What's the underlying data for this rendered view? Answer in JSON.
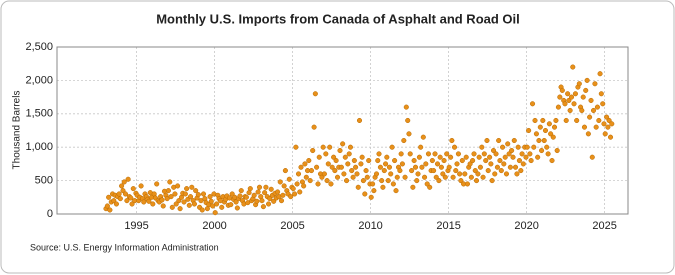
{
  "chart_data": {
    "type": "scatter",
    "title": "Monthly U.S. Imports from Canada of Asphalt and Road Oil",
    "y_label": "Thousand Barrels",
    "source": "Source: U.S. Energy Information Administration",
    "color": "#e8901a",
    "xlim": [
      1989.9,
      2026.5
    ],
    "xticks": [
      1995,
      2000,
      2005,
      2010,
      2015,
      2020,
      2025
    ],
    "ylim": [
      0,
      2500
    ],
    "yticks": [
      0,
      500,
      {
        "value": 1000,
        "label": "1,000"
      },
      {
        "value": 1500,
        "label": "1,500"
      },
      {
        "value": 2000,
        "label": "2,000"
      },
      {
        "value": 2500,
        "label": "2,500"
      }
    ],
    "grid": true,
    "x": [
      1993.04,
      1993.13,
      1993.21,
      1993.29,
      1993.38,
      1993.46,
      1993.54,
      1993.63,
      1993.71,
      1993.79,
      1993.88,
      1993.96,
      1994.04,
      1994.13,
      1994.21,
      1994.29,
      1994.38,
      1994.46,
      1994.54,
      1994.63,
      1994.71,
      1994.79,
      1994.88,
      1994.96,
      1995.04,
      1995.13,
      1995.21,
      1995.29,
      1995.38,
      1995.46,
      1995.54,
      1995.63,
      1995.71,
      1995.79,
      1995.88,
      1995.96,
      1996.04,
      1996.13,
      1996.21,
      1996.29,
      1996.38,
      1996.46,
      1996.54,
      1996.63,
      1996.71,
      1996.79,
      1996.88,
      1996.96,
      1997.04,
      1997.13,
      1997.21,
      1997.29,
      1997.38,
      1997.46,
      1997.54,
      1997.63,
      1997.71,
      1997.79,
      1997.88,
      1997.96,
      1998.04,
      1998.13,
      1998.21,
      1998.29,
      1998.38,
      1998.46,
      1998.54,
      1998.63,
      1998.71,
      1998.79,
      1998.88,
      1998.96,
      1999.04,
      1999.13,
      1999.21,
      1999.29,
      1999.38,
      1999.46,
      1999.54,
      1999.63,
      1999.71,
      1999.79,
      1999.88,
      1999.96,
      2000.04,
      2000.13,
      2000.21,
      2000.29,
      2000.38,
      2000.46,
      2000.54,
      2000.63,
      2000.71,
      2000.79,
      2000.88,
      2000.96,
      2001.04,
      2001.13,
      2001.21,
      2001.29,
      2001.38,
      2001.46,
      2001.54,
      2001.63,
      2001.71,
      2001.79,
      2001.88,
      2001.96,
      2002.04,
      2002.13,
      2002.21,
      2002.29,
      2002.38,
      2002.46,
      2002.54,
      2002.63,
      2002.71,
      2002.79,
      2002.88,
      2002.96,
      2003.04,
      2003.13,
      2003.21,
      2003.29,
      2003.38,
      2003.46,
      2003.54,
      2003.63,
      2003.71,
      2003.79,
      2003.88,
      2003.96,
      2004.04,
      2004.13,
      2004.21,
      2004.29,
      2004.38,
      2004.46,
      2004.54,
      2004.63,
      2004.71,
      2004.79,
      2004.88,
      2004.96,
      2005.04,
      2005.13,
      2005.21,
      2005.29,
      2005.38,
      2005.46,
      2005.54,
      2005.63,
      2005.71,
      2005.79,
      2005.88,
      2005.96,
      2006.04,
      2006.13,
      2006.21,
      2006.29,
      2006.38,
      2006.46,
      2006.54,
      2006.63,
      2006.71,
      2006.79,
      2006.88,
      2006.96,
      2007.04,
      2007.13,
      2007.21,
      2007.29,
      2007.38,
      2007.46,
      2007.54,
      2007.63,
      2007.71,
      2007.79,
      2007.88,
      2007.96,
      2008.04,
      2008.13,
      2008.21,
      2008.29,
      2008.38,
      2008.46,
      2008.54,
      2008.63,
      2008.71,
      2008.79,
      2008.88,
      2008.96,
      2009.04,
      2009.13,
      2009.21,
      2009.29,
      2009.38,
      2009.46,
      2009.54,
      2009.63,
      2009.71,
      2009.79,
      2009.88,
      2009.96,
      2010.04,
      2010.13,
      2010.21,
      2010.29,
      2010.38,
      2010.46,
      2010.54,
      2010.63,
      2010.71,
      2010.79,
      2010.88,
      2010.96,
      2011.04,
      2011.13,
      2011.21,
      2011.29,
      2011.38,
      2011.46,
      2011.54,
      2011.63,
      2011.71,
      2011.79,
      2011.88,
      2011.96,
      2012.04,
      2012.13,
      2012.21,
      2012.29,
      2012.38,
      2012.46,
      2012.54,
      2012.63,
      2012.71,
      2012.79,
      2012.88,
      2012.96,
      2013.04,
      2013.13,
      2013.21,
      2013.29,
      2013.38,
      2013.46,
      2013.54,
      2013.63,
      2013.71,
      2013.79,
      2013.88,
      2013.96,
      2014.04,
      2014.13,
      2014.21,
      2014.29,
      2014.38,
      2014.46,
      2014.54,
      2014.63,
      2014.71,
      2014.79,
      2014.88,
      2014.96,
      2015.04,
      2015.13,
      2015.21,
      2015.29,
      2015.38,
      2015.46,
      2015.54,
      2015.63,
      2015.71,
      2015.79,
      2015.88,
      2015.96,
      2016.04,
      2016.13,
      2016.21,
      2016.29,
      2016.38,
      2016.46,
      2016.54,
      2016.63,
      2016.71,
      2016.79,
      2016.88,
      2016.96,
      2017.04,
      2017.13,
      2017.21,
      2017.29,
      2017.38,
      2017.46,
      2017.54,
      2017.63,
      2017.71,
      2017.79,
      2017.88,
      2017.96,
      2018.04,
      2018.13,
      2018.21,
      2018.29,
      2018.38,
      2018.46,
      2018.54,
      2018.63,
      2018.71,
      2018.79,
      2018.88,
      2018.96,
      2019.04,
      2019.13,
      2019.21,
      2019.29,
      2019.38,
      2019.46,
      2019.54,
      2019.63,
      2019.71,
      2019.79,
      2019.88,
      2019.96,
      2020.04,
      2020.13,
      2020.21,
      2020.29,
      2020.38,
      2020.46,
      2020.54,
      2020.63,
      2020.71,
      2020.79,
      2020.88,
      2020.96,
      2021.04,
      2021.13,
      2021.21,
      2021.29,
      2021.38,
      2021.46,
      2021.54,
      2021.63,
      2021.71,
      2021.79,
      2021.88,
      2021.96,
      2022.04,
      2022.13,
      2022.21,
      2022.29,
      2022.38,
      2022.46,
      2022.54,
      2022.63,
      2022.71,
      2022.79,
      2022.88,
      2022.96,
      2023.04,
      2023.13,
      2023.21,
      2023.29,
      2023.38,
      2023.46,
      2023.54,
      2023.63,
      2023.71,
      2023.79,
      2023.88,
      2023.96,
      2024.04,
      2024.13,
      2024.21,
      2024.29,
      2024.38,
      2024.46,
      2024.54,
      2024.63,
      2024.71,
      2024.79,
      2024.88,
      2024.96,
      2025.04,
      2025.13,
      2025.21,
      2025.29,
      2025.38,
      2025.46
    ],
    "values": [
      80,
      120,
      250,
      60,
      180,
      300,
      200,
      280,
      150,
      260,
      300,
      230,
      420,
      350,
      480,
      300,
      200,
      520,
      260,
      240,
      150,
      380,
      200,
      310,
      280,
      200,
      250,
      420,
      230,
      180,
      300,
      260,
      220,
      190,
      320,
      250,
      150,
      300,
      240,
      450,
      200,
      180,
      260,
      210,
      120,
      340,
      280,
      230,
      350,
      480,
      260,
      100,
      400,
      300,
      150,
      420,
      200,
      80,
      250,
      310,
      180,
      300,
      380,
      220,
      130,
      260,
      400,
      200,
      150,
      350,
      240,
      290,
      100,
      200,
      60,
      300,
      230,
      170,
      80,
      140,
      260,
      190,
      120,
      300,
      20,
      150,
      280,
      230,
      200,
      100,
      260,
      180,
      220,
      270,
      130,
      240,
      140,
      300,
      220,
      250,
      180,
      90,
      230,
      270,
      350,
      200,
      150,
      260,
      250,
      170,
      320,
      380,
      200,
      230,
      280,
      140,
      190,
      330,
      400,
      260,
      200,
      110,
      320,
      400,
      260,
      150,
      230,
      370,
      280,
      190,
      310,
      240,
      330,
      260,
      480,
      200,
      280,
      420,
      650,
      350,
      300,
      520,
      260,
      400,
      380,
      300,
      1000,
      450,
      600,
      330,
      700,
      480,
      420,
      750,
      550,
      650,
      800,
      500,
      650,
      950,
      1300,
      1800,
      700,
      450,
      850,
      600,
      550,
      1000,
      600,
      900,
      500,
      750,
      1000,
      450,
      700,
      850,
      650,
      800,
      550,
      700,
      950,
      700,
      1050,
      600,
      850,
      500,
      750,
      900,
      1000,
      650,
      550,
      800,
      700,
      600,
      400,
      1400,
      750,
      850,
      500,
      300,
      650,
      550,
      800,
      450,
      250,
      450,
      350,
      550,
      600,
      800,
      900,
      700,
      500,
      400,
      650,
      750,
      850,
      500,
      700,
      600,
      1000,
      450,
      800,
      350,
      550,
      700,
      650,
      900,
      750,
      1100,
      550,
      1600,
      1400,
      1200,
      900,
      650,
      400,
      800,
      700,
      500,
      600,
      850,
      1000,
      700,
      1150,
      550,
      750,
      450,
      900,
      400,
      650,
      800,
      650,
      900,
      550,
      750,
      500,
      850,
      700,
      600,
      800,
      550,
      900,
      650,
      700,
      850,
      1100,
      550,
      1000,
      650,
      750,
      900,
      600,
      500,
      800,
      450,
      600,
      850,
      450,
      700,
      750,
      550,
      800,
      900,
      650,
      500,
      600,
      850,
      700,
      1000,
      550,
      900,
      800,
      1100,
      650,
      850,
      750,
      500,
      950,
      600,
      900,
      700,
      1100,
      800,
      650,
      1000,
      750,
      850,
      600,
      1050,
      900,
      700,
      950,
      850,
      1100,
      700,
      600,
      1000,
      800,
      650,
      900,
      750,
      1000,
      850,
      1000,
      1250,
      900,
      800,
      1650,
      1000,
      1400,
      1200,
      850,
      1100,
      1300,
      950,
      1400,
      1100,
      1250,
      1000,
      900,
      1350,
      1200,
      800,
      1150,
      1300,
      1400,
      950,
      1600,
      1750,
      1900,
      1850,
      1700,
      1650,
      1400,
      1800,
      1700,
      1550,
      1750,
      2200,
      1650,
      1800,
      1400,
      1900,
      1950,
      1600,
      1550,
      1750,
      1300,
      1850,
      2000,
      1200,
      1450,
      1700,
      850,
      1550,
      1950,
      1300,
      1600,
      1400,
      2100,
      1800,
      1650,
      1350,
      1200,
      1450,
      1300,
      1400,
      1150,
      1350
    ]
  }
}
